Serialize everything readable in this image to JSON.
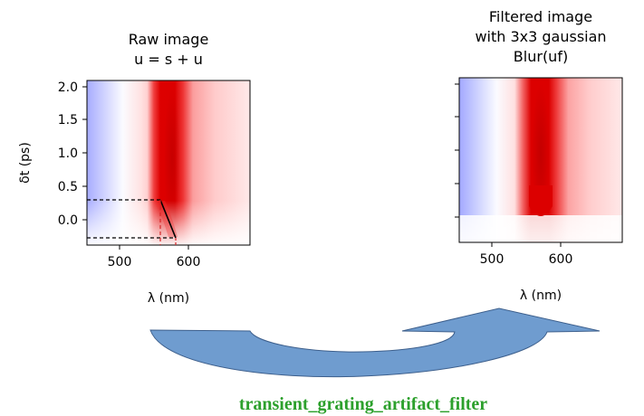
{
  "left_panel": {
    "title_line1": "Raw image",
    "title_line2": "u = s + u",
    "xlabel": "λ (nm)",
    "ylabel": "δt (ps)",
    "xticks": [
      "500",
      "600"
    ],
    "yticks": [
      "2.0",
      "1.5",
      "1.0",
      "0.5",
      "0.0"
    ]
  },
  "right_panel": {
    "title_line1": "Filtered image",
    "title_line2": "with 3x3 gaussian",
    "title_line3": "Blur(uf)",
    "xlabel": "λ (nm)",
    "xticks": [
      "500",
      "600"
    ]
  },
  "function_name": "transient_grating_artifact_filter",
  "colors": {
    "arrow_fill": "#6f9ccf",
    "arrow_stroke": "#3d5f8c",
    "function_name": "#2ca02c",
    "positive": "#d40000",
    "negative": "#8c96ff"
  }
}
